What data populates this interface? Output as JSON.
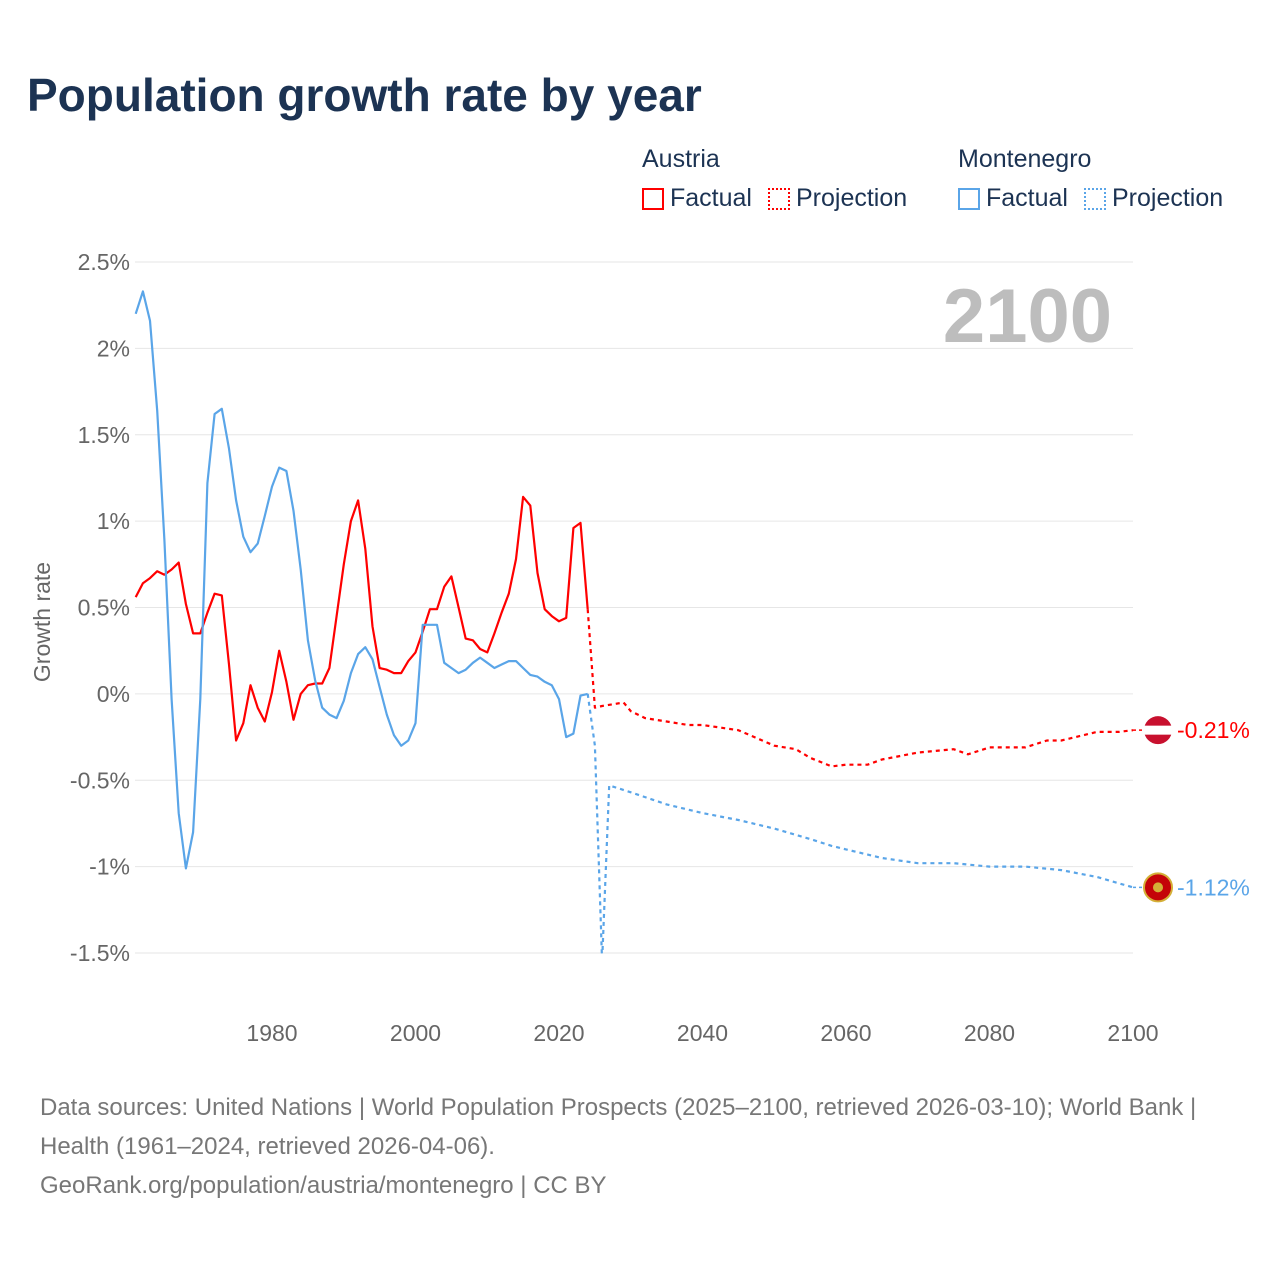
{
  "title": "Population growth rate by year",
  "legend": {
    "groups": [
      {
        "name": "Austria",
        "factual": "Factual",
        "projection": "Projection",
        "color": "#ff0000"
      },
      {
        "name": "Montenegro",
        "factual": "Factual",
        "projection": "Projection",
        "color": "#5aa5e8"
      }
    ]
  },
  "year_watermark": "2100",
  "footer": {
    "sources": "Data sources: United Nations | World Population Prospects (2025–2100, retrieved 2026-03-10); World Bank | Health (1961–2024, retrieved 2026-04-06).",
    "credit": "GeoRank.org/population/austria/montenegro | CC BY"
  },
  "chart_data": {
    "type": "line",
    "title": "Population growth rate by year",
    "xlabel": "",
    "ylabel": "Growth rate",
    "xlim": [
      1961,
      2100
    ],
    "ylim": [
      -1.5,
      2.5
    ],
    "xticks": [
      1980,
      2000,
      2020,
      2040,
      2060,
      2080,
      2100
    ],
    "xtick_labels": [
      "1980",
      "2000",
      "2020",
      "2040",
      "2060",
      "2080",
      "2100"
    ],
    "yticks": [
      2.5,
      2,
      1.5,
      1,
      0.5,
      0,
      -0.5,
      -1,
      -1.5
    ],
    "ytick_labels": [
      "2.5%",
      "2%",
      "1.5%",
      "1%",
      "0.5%",
      "0%",
      "-0.5%",
      "-1%",
      "-1.5%"
    ],
    "grid": true,
    "legend_position": "top-right",
    "series": [
      {
        "name": "Austria Factual",
        "color": "#ff0000",
        "dashed": false,
        "x": [
          1961,
          1962,
          1963,
          1964,
          1965,
          1966,
          1967,
          1968,
          1969,
          1970,
          1971,
          1972,
          1973,
          1974,
          1975,
          1976,
          1977,
          1978,
          1979,
          1980,
          1981,
          1982,
          1983,
          1984,
          1985,
          1986,
          1987,
          1988,
          1989,
          1990,
          1991,
          1992,
          1993,
          1994,
          1995,
          1996,
          1997,
          1998,
          1999,
          2000,
          2001,
          2002,
          2003,
          2004,
          2005,
          2006,
          2007,
          2008,
          2009,
          2010,
          2011,
          2012,
          2013,
          2014,
          2015,
          2016,
          2017,
          2018,
          2019,
          2020,
          2021,
          2022,
          2023,
          2024
        ],
        "y": [
          0.56,
          0.64,
          0.67,
          0.71,
          0.69,
          0.72,
          0.76,
          0.52,
          0.35,
          0.35,
          0.47,
          0.58,
          0.57,
          0.17,
          -0.27,
          -0.17,
          0.05,
          -0.08,
          -0.16,
          0.01,
          0.25,
          0.07,
          -0.15,
          0,
          0.05,
          0.06,
          0.06,
          0.15,
          0.45,
          0.75,
          1.0,
          1.12,
          0.84,
          0.39,
          0.15,
          0.14,
          0.12,
          0.12,
          0.19,
          0.24,
          0.36,
          0.49,
          0.49,
          0.62,
          0.68,
          0.5,
          0.32,
          0.31,
          0.26,
          0.24,
          0.35,
          0.47,
          0.58,
          0.78,
          1.14,
          1.09,
          0.7,
          0.49,
          0.45,
          0.42,
          0.44,
          0.96,
          0.99,
          0.49
        ]
      },
      {
        "name": "Austria Projection",
        "color": "#ff0000",
        "dashed": true,
        "x": [
          2024,
          2025,
          2026,
          2029,
          2030,
          2032,
          2035,
          2038,
          2040,
          2045,
          2050,
          2053,
          2055,
          2058,
          2060,
          2063,
          2065,
          2070,
          2075,
          2077,
          2080,
          2085,
          2088,
          2090,
          2095,
          2098,
          2100
        ],
        "y": [
          0.49,
          -0.08,
          -0.07,
          -0.05,
          -0.1,
          -0.14,
          -0.16,
          -0.18,
          -0.18,
          -0.21,
          -0.3,
          -0.32,
          -0.37,
          -0.42,
          -0.41,
          -0.41,
          -0.38,
          -0.34,
          -0.32,
          -0.35,
          -0.31,
          -0.31,
          -0.27,
          -0.27,
          -0.22,
          -0.22,
          -0.21
        ],
        "end_label": "-0.21%"
      },
      {
        "name": "Montenegro Factual",
        "color": "#5aa5e8",
        "dashed": false,
        "x": [
          1961,
          1962,
          1963,
          1964,
          1965,
          1966,
          1967,
          1968,
          1969,
          1970,
          1971,
          1972,
          1973,
          1974,
          1975,
          1976,
          1977,
          1978,
          1979,
          1980,
          1981,
          1982,
          1983,
          1984,
          1985,
          1986,
          1987,
          1988,
          1989,
          1990,
          1991,
          1992,
          1993,
          1994,
          1995,
          1996,
          1997,
          1998,
          1999,
          2000,
          2001,
          2002,
          2003,
          2004,
          2005,
          2006,
          2007,
          2008,
          2009,
          2010,
          2011,
          2012,
          2013,
          2014,
          2015,
          2016,
          2017,
          2018,
          2019,
          2020,
          2021,
          2022,
          2023,
          2024
        ],
        "y": [
          2.2,
          2.33,
          2.16,
          1.64,
          0.89,
          -0.03,
          -0.69,
          -1.01,
          -0.8,
          -0.03,
          1.22,
          1.62,
          1.65,
          1.42,
          1.12,
          0.91,
          0.82,
          0.87,
          1.03,
          1.2,
          1.31,
          1.29,
          1.06,
          0.72,
          0.31,
          0.08,
          -0.08,
          -0.12,
          -0.14,
          -0.04,
          0.12,
          0.23,
          0.27,
          0.2,
          0.04,
          -0.12,
          -0.24,
          -0.3,
          -0.27,
          -0.17,
          0.4,
          0.4,
          0.4,
          0.18,
          0.15,
          0.12,
          0.14,
          0.18,
          0.21,
          0.18,
          0.15,
          0.17,
          0.19,
          0.19,
          0.15,
          0.11,
          0.1,
          0.07,
          0.05,
          -0.03,
          -0.25,
          -0.23,
          -0.01,
          0.0
        ]
      },
      {
        "name": "Montenegro Projection",
        "color": "#5aa5e8",
        "dashed": true,
        "x": [
          2024,
          2025,
          2026,
          2027,
          2030,
          2035,
          2040,
          2045,
          2050,
          2055,
          2058,
          2060,
          2065,
          2070,
          2075,
          2080,
          2085,
          2090,
          2095,
          2100
        ],
        "y": [
          0.0,
          -0.3,
          -1.55,
          -0.53,
          -0.57,
          -0.64,
          -0.69,
          -0.73,
          -0.78,
          -0.84,
          -0.88,
          -0.9,
          -0.95,
          -0.98,
          -0.98,
          -1.0,
          -1.0,
          -1.02,
          -1.06,
          -1.12
        ],
        "end_label": "-1.12%"
      }
    ]
  }
}
